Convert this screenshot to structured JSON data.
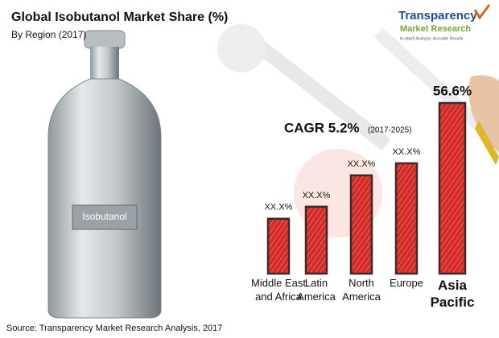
{
  "chart_data": {
    "type": "bar",
    "title": "Global Isobutanol Market Share (%)",
    "subtitle": "By Region (2017)",
    "logo": {
      "name": "Transparency",
      "line2": "Market Research",
      "tagline": "In-depth Analysis. Accurate Results."
    },
    "product_label": "Isobutanol",
    "annotation": {
      "text": "CAGR 5.2%",
      "period": "(2017-2025)"
    },
    "source": "Source: Transparency Market Research Analysis, 2017",
    "categories": [
      "Middle East\nand Africa",
      "Latin\nAmerica",
      "North\nAmerica",
      "Europe",
      "Asia\nPacific"
    ],
    "values": [
      18.2,
      22.2,
      32.6,
      36.6,
      56.6
    ],
    "value_labels": [
      "XX.X%",
      "XX.X%",
      "XX.X%",
      "XX.X%",
      "56.6%"
    ],
    "color": "#d32a28"
  }
}
